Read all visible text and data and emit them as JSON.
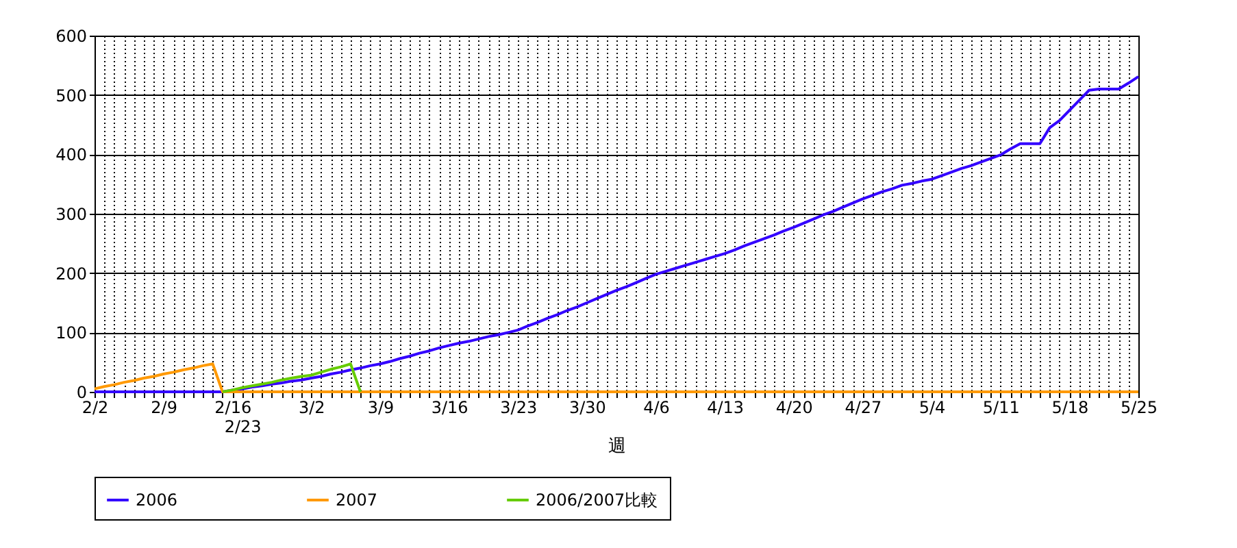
{
  "chart_data": {
    "type": "line",
    "xlabel": "週",
    "ylim": [
      0,
      600
    ],
    "yticks": [
      0,
      100,
      200,
      300,
      400,
      500,
      600
    ],
    "categories": [
      "2/2",
      null,
      null,
      null,
      null,
      null,
      null,
      "2/9",
      null,
      null,
      null,
      null,
      null,
      null,
      "2/16",
      "2/23",
      null,
      null,
      null,
      null,
      null,
      null,
      "3/2",
      null,
      null,
      null,
      null,
      null,
      null,
      "3/9",
      null,
      null,
      null,
      null,
      null,
      null,
      "3/16",
      null,
      null,
      null,
      null,
      null,
      null,
      "3/23",
      null,
      null,
      null,
      null,
      null,
      null,
      "3/30",
      null,
      null,
      null,
      null,
      null,
      null,
      "4/6",
      null,
      null,
      null,
      null,
      null,
      null,
      "4/13",
      null,
      null,
      null,
      null,
      null,
      null,
      "4/20",
      null,
      null,
      null,
      null,
      null,
      null,
      "4/27",
      null,
      null,
      null,
      null,
      null,
      null,
      "5/4",
      null,
      null,
      null,
      null,
      null,
      null,
      "5/11",
      null,
      null,
      null,
      null,
      null,
      null,
      "5/18",
      null,
      null,
      null,
      null,
      null,
      null,
      "5/25"
    ],
    "grid": true,
    "legend": "bottom",
    "line_style": "solid",
    "series": [
      {
        "name": "2006",
        "color": "#3300ff",
        "values": [
          0,
          0,
          0,
          0,
          0,
          0,
          0,
          0,
          0,
          0,
          0,
          0,
          0,
          0,
          3,
          5,
          8,
          10,
          13,
          15,
          18,
          20,
          23,
          26,
          30,
          33,
          37,
          40,
          44,
          47,
          51,
          56,
          60,
          65,
          69,
          74,
          78,
          82,
          85,
          89,
          93,
          96,
          100,
          104,
          111,
          117,
          124,
          130,
          137,
          143,
          150,
          157,
          164,
          171,
          177,
          184,
          191,
          198,
          203,
          208,
          213,
          218,
          223,
          228,
          233,
          239,
          246,
          252,
          258,
          264,
          271,
          277,
          284,
          291,
          298,
          304,
          311,
          318,
          325,
          331,
          337,
          342,
          348,
          351,
          355,
          358,
          364,
          370,
          376,
          381,
          387,
          393,
          399,
          409,
          418,
          418,
          418,
          445,
          457,
          474,
          491,
          508,
          510,
          510,
          510,
          520,
          531
        ]
      },
      {
        "name": "2007",
        "color": "#ff9900",
        "values": [
          5,
          9,
          12,
          16,
          19,
          23,
          26,
          30,
          33,
          37,
          40,
          44,
          47,
          0,
          0,
          0,
          0,
          0,
          0,
          0,
          0,
          0,
          0,
          0,
          0,
          0,
          0,
          0,
          0,
          0,
          0,
          0,
          0,
          0,
          0,
          0,
          0,
          0,
          0,
          0,
          0,
          0,
          0,
          0,
          0,
          0,
          0,
          0,
          0,
          0,
          0,
          0,
          0,
          0,
          0,
          0,
          0,
          0,
          0,
          0,
          0,
          0,
          0,
          0,
          0,
          0,
          0,
          0,
          0,
          0,
          0,
          0,
          0,
          0,
          0,
          0,
          0,
          0,
          0,
          0,
          0,
          0,
          0,
          0,
          0,
          0,
          0,
          0,
          0,
          0,
          0,
          0,
          0,
          0,
          0,
          0,
          0,
          0,
          0,
          0,
          0,
          0,
          0,
          0,
          0,
          0,
          0
        ]
      },
      {
        "name": "2006/2007比較",
        "color": "#66cc00",
        "values": [
          null,
          null,
          null,
          null,
          null,
          null,
          null,
          null,
          null,
          null,
          null,
          null,
          null,
          0,
          3,
          7,
          10,
          13,
          16,
          20,
          23,
          26,
          28,
          33,
          38,
          42,
          47,
          0,
          null,
          null,
          null,
          null,
          null,
          null,
          null,
          null,
          null,
          null,
          null,
          null,
          null,
          null,
          null,
          null,
          null,
          null,
          null,
          null,
          null,
          null,
          null,
          null,
          null,
          null,
          null,
          null,
          null,
          null,
          null,
          null,
          null,
          null,
          null,
          null,
          null,
          null,
          null,
          null,
          null,
          null,
          null,
          null,
          null,
          null,
          null,
          null,
          null,
          null,
          null,
          null,
          null,
          null,
          null,
          null,
          null,
          null,
          null,
          null,
          null,
          null,
          null,
          null,
          null,
          null,
          null,
          null,
          null,
          null,
          null,
          null,
          null,
          null,
          null,
          null,
          null,
          null,
          null
        ]
      }
    ]
  }
}
